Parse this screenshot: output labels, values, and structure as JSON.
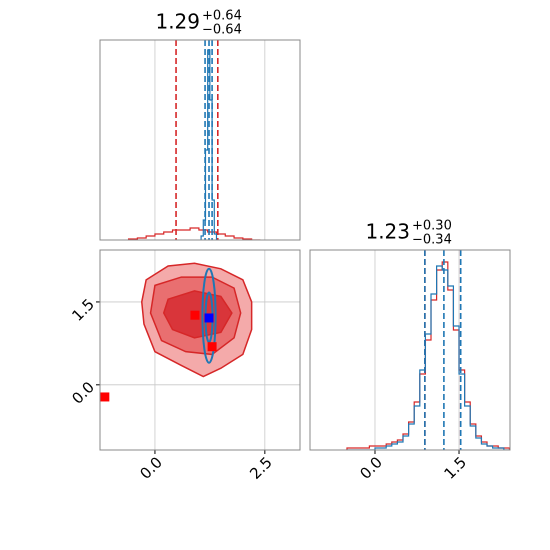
{
  "chart_data": [
    {
      "type": "histogram",
      "title": {
        "main": "1.29",
        "upper": "+0.64",
        "lower": "−0.64"
      },
      "xlim": [
        -1.25,
        3.3
      ],
      "ylim": [
        0,
        100
      ],
      "series": [
        {
          "color": "#d62728",
          "bins": [
            -0.6,
            -0.4,
            -0.2,
            0.0,
            0.2,
            0.4,
            0.6,
            0.8,
            1.0,
            1.2,
            1.4,
            1.6,
            1.8,
            2.0,
            2.2,
            2.4
          ],
          "counts": [
            0.5,
            1,
            2,
            3,
            4,
            5,
            5,
            6,
            5,
            4,
            3,
            2,
            1,
            0.5,
            0
          ]
        },
        {
          "color": "#1f77b4",
          "bins": [
            1.05,
            1.1,
            1.15,
            1.2,
            1.25,
            1.3,
            1.35,
            1.4
          ],
          "counts": [
            2,
            10,
            45,
            95,
            70,
            20,
            3
          ]
        }
      ],
      "quantiles": [
        {
          "color": "#d62728",
          "values": [
            0.48,
            1.43
          ]
        },
        {
          "color": "#1f77b4",
          "values": [
            1.14,
            1.23,
            1.3
          ]
        }
      ]
    },
    {
      "type": "contour",
      "xlim": [
        -1.25,
        3.3
      ],
      "ylim": [
        -1.18,
        2.44
      ],
      "xticks": [
        {
          "value": 0,
          "label": "0.0"
        },
        2.5
      ],
      "yticks": [
        {
          "value": 0,
          "label": "0.0"
        },
        1.5
      ],
      "contours": [
        {
          "color": "#d62728",
          "fill": "#f4aaaa",
          "x": [
            -0.2,
            0.3,
            0.9,
            1.5,
            2.0,
            2.2,
            2.2,
            2.0,
            1.5,
            1.1,
            0.6,
            0.0,
            -0.25,
            -0.3
          ],
          "y": [
            1.9,
            2.15,
            2.2,
            2.1,
            1.9,
            1.5,
            1.0,
            0.55,
            0.3,
            0.15,
            0.35,
            0.6,
            1.1,
            1.5
          ]
        },
        {
          "color": "#d62728",
          "fill": "#e96f70",
          "x": [
            0.0,
            0.6,
            1.3,
            1.8,
            1.95,
            1.8,
            1.3,
            0.7,
            0.15,
            -0.1
          ],
          "y": [
            1.8,
            1.95,
            1.95,
            1.75,
            1.3,
            0.85,
            0.55,
            0.6,
            0.8,
            1.3
          ]
        },
        {
          "color": "#d62728",
          "fill": "#d9353a",
          "x": [
            0.3,
            0.9,
            1.5,
            1.75,
            1.5,
            0.9,
            0.4,
            0.2
          ],
          "y": [
            1.55,
            1.7,
            1.6,
            1.3,
            0.95,
            0.85,
            1.0,
            1.3
          ]
        }
      ],
      "ellipses": [
        {
          "color": "#1f77b4",
          "cx": 1.23,
          "cy": 1.25,
          "rx": 0.15,
          "ry": 0.85
        },
        {
          "color": "#1f77b4",
          "cx": 1.23,
          "cy": 1.22,
          "rx": 0.08,
          "ry": 0.45
        }
      ],
      "markers": [
        {
          "color": "#ff0000",
          "x": 0.91,
          "y": 1.26
        },
        {
          "color": "#ff0000",
          "x": 1.3,
          "y": 0.69
        },
        {
          "color": "#ff0000",
          "x": -1.14,
          "y": -0.22
        },
        {
          "color": "#0000ff",
          "x": 1.23,
          "y": 1.21
        }
      ]
    },
    {
      "type": "histogram",
      "title": {
        "main": "1.23",
        "upper": "+0.30",
        "lower": "−0.34"
      },
      "xlim": [
        -1.16,
        2.41
      ],
      "ylim": [
        0,
        100
      ],
      "xticks": [
        {
          "value": 0,
          "label": "0.0"
        },
        1.5
      ],
      "series": [
        {
          "color": "#d62728",
          "bins": [
            -0.5,
            -0.4,
            -0.3,
            -0.2,
            -0.1,
            0.0,
            0.1,
            0.2,
            0.3,
            0.4,
            0.5,
            0.6,
            0.7,
            0.8,
            0.9,
            1.0,
            1.1,
            1.2,
            1.3,
            1.4,
            1.5,
            1.6,
            1.7,
            1.8,
            1.9,
            2.0,
            2.1,
            2.2,
            2.3,
            2.4
          ],
          "counts": [
            1,
            1,
            1,
            1,
            2,
            2,
            2,
            3,
            4,
            5,
            8,
            14,
            24,
            38,
            55,
            75,
            90,
            94,
            80,
            60,
            40,
            24,
            13,
            7,
            4,
            2,
            2,
            1,
            1
          ]
        },
        {
          "color": "#1f77b4",
          "bins": [
            -0.5,
            -0.4,
            -0.3,
            -0.2,
            -0.1,
            0.0,
            0.1,
            0.2,
            0.3,
            0.4,
            0.5,
            0.6,
            0.7,
            0.8,
            0.9,
            1.0,
            1.1,
            1.2,
            1.3,
            1.4,
            1.5,
            1.6,
            1.7,
            1.8,
            1.9,
            2.0,
            2.1,
            2.2,
            2.3,
            2.4
          ],
          "counts": [
            0,
            0,
            0,
            0,
            0,
            1,
            1,
            2,
            3,
            4,
            7,
            13,
            22,
            40,
            58,
            78,
            92,
            90,
            82,
            62,
            38,
            22,
            12,
            6,
            3,
            2,
            1,
            1,
            0
          ]
        }
      ],
      "quantiles": [
        {
          "color": "#d62728",
          "values": [
            0.89,
            1.53
          ]
        },
        {
          "color": "#1f77b4",
          "values": [
            0.89,
            1.23,
            1.53
          ]
        }
      ]
    }
  ]
}
